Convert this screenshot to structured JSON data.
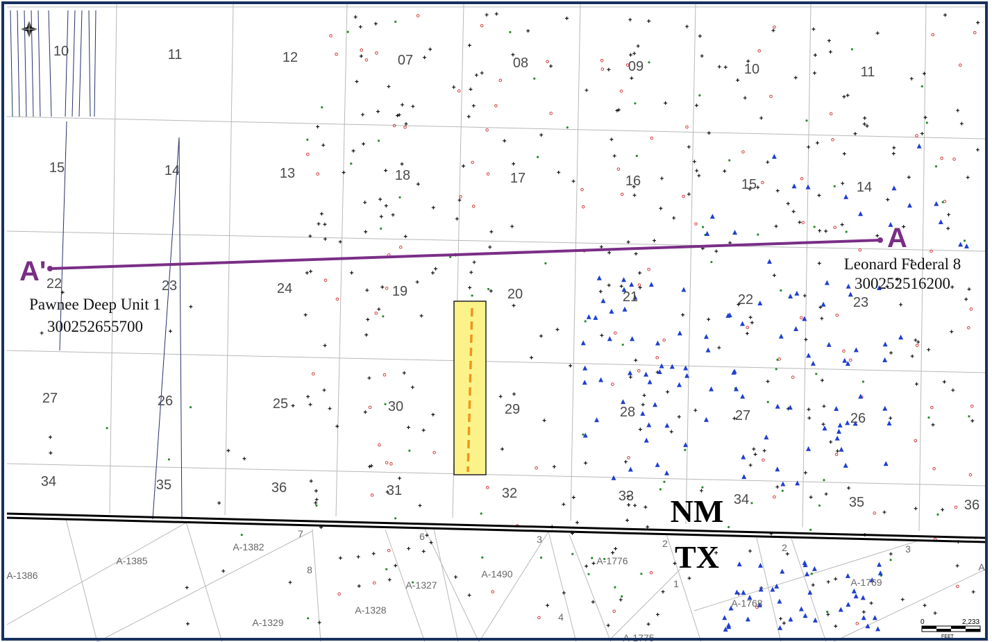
{
  "nm_sections": [
    "10",
    "11",
    "12",
    "07",
    "08",
    "09",
    "10",
    "11",
    "15",
    "14",
    "13",
    "18",
    "17",
    "16",
    "15",
    "14",
    "22",
    "23",
    "24",
    "19",
    "20",
    "21",
    "22",
    "23",
    "27",
    "26",
    "25",
    "30",
    "29",
    "28",
    "27",
    "26",
    "34",
    "35",
    "36",
    "31",
    "32",
    "33",
    "34",
    "35",
    "36"
  ],
  "tx_labels": [
    "A-1386",
    "A-1385",
    "A-1382",
    "7",
    "8",
    "A-1329",
    "6",
    "A-1327",
    "A-1328",
    "A-1490",
    "3",
    "4",
    "A-1776",
    "2",
    "1",
    "A-1775",
    "A-1768",
    "2",
    "3",
    "A-1769",
    "A"
  ],
  "cross_section": {
    "start_label": "A'",
    "end_label": "A",
    "west_well": {
      "name": "Pawnee Deep Unit 1",
      "api": "300252655700"
    },
    "east_well": {
      "name": "Leonard Federal 8",
      "api": "300252516200"
    }
  },
  "states": {
    "north": "NM",
    "south": "TX"
  },
  "scale_bar": {
    "min": "0",
    "max": "2,233",
    "unit": "FEET"
  },
  "colors": {
    "cross_section_line": "#7a2e86",
    "state_line": "#000000",
    "highlight_fill": "#fbf38a",
    "dashed_wellbore": "#f0941f",
    "oil_well_green": "#2a8a2a",
    "gas_well_red": "#d23b3b",
    "injection_well_blue": "#1f3fd0"
  },
  "icons": {
    "north_arrow": "compass-star-icon"
  }
}
